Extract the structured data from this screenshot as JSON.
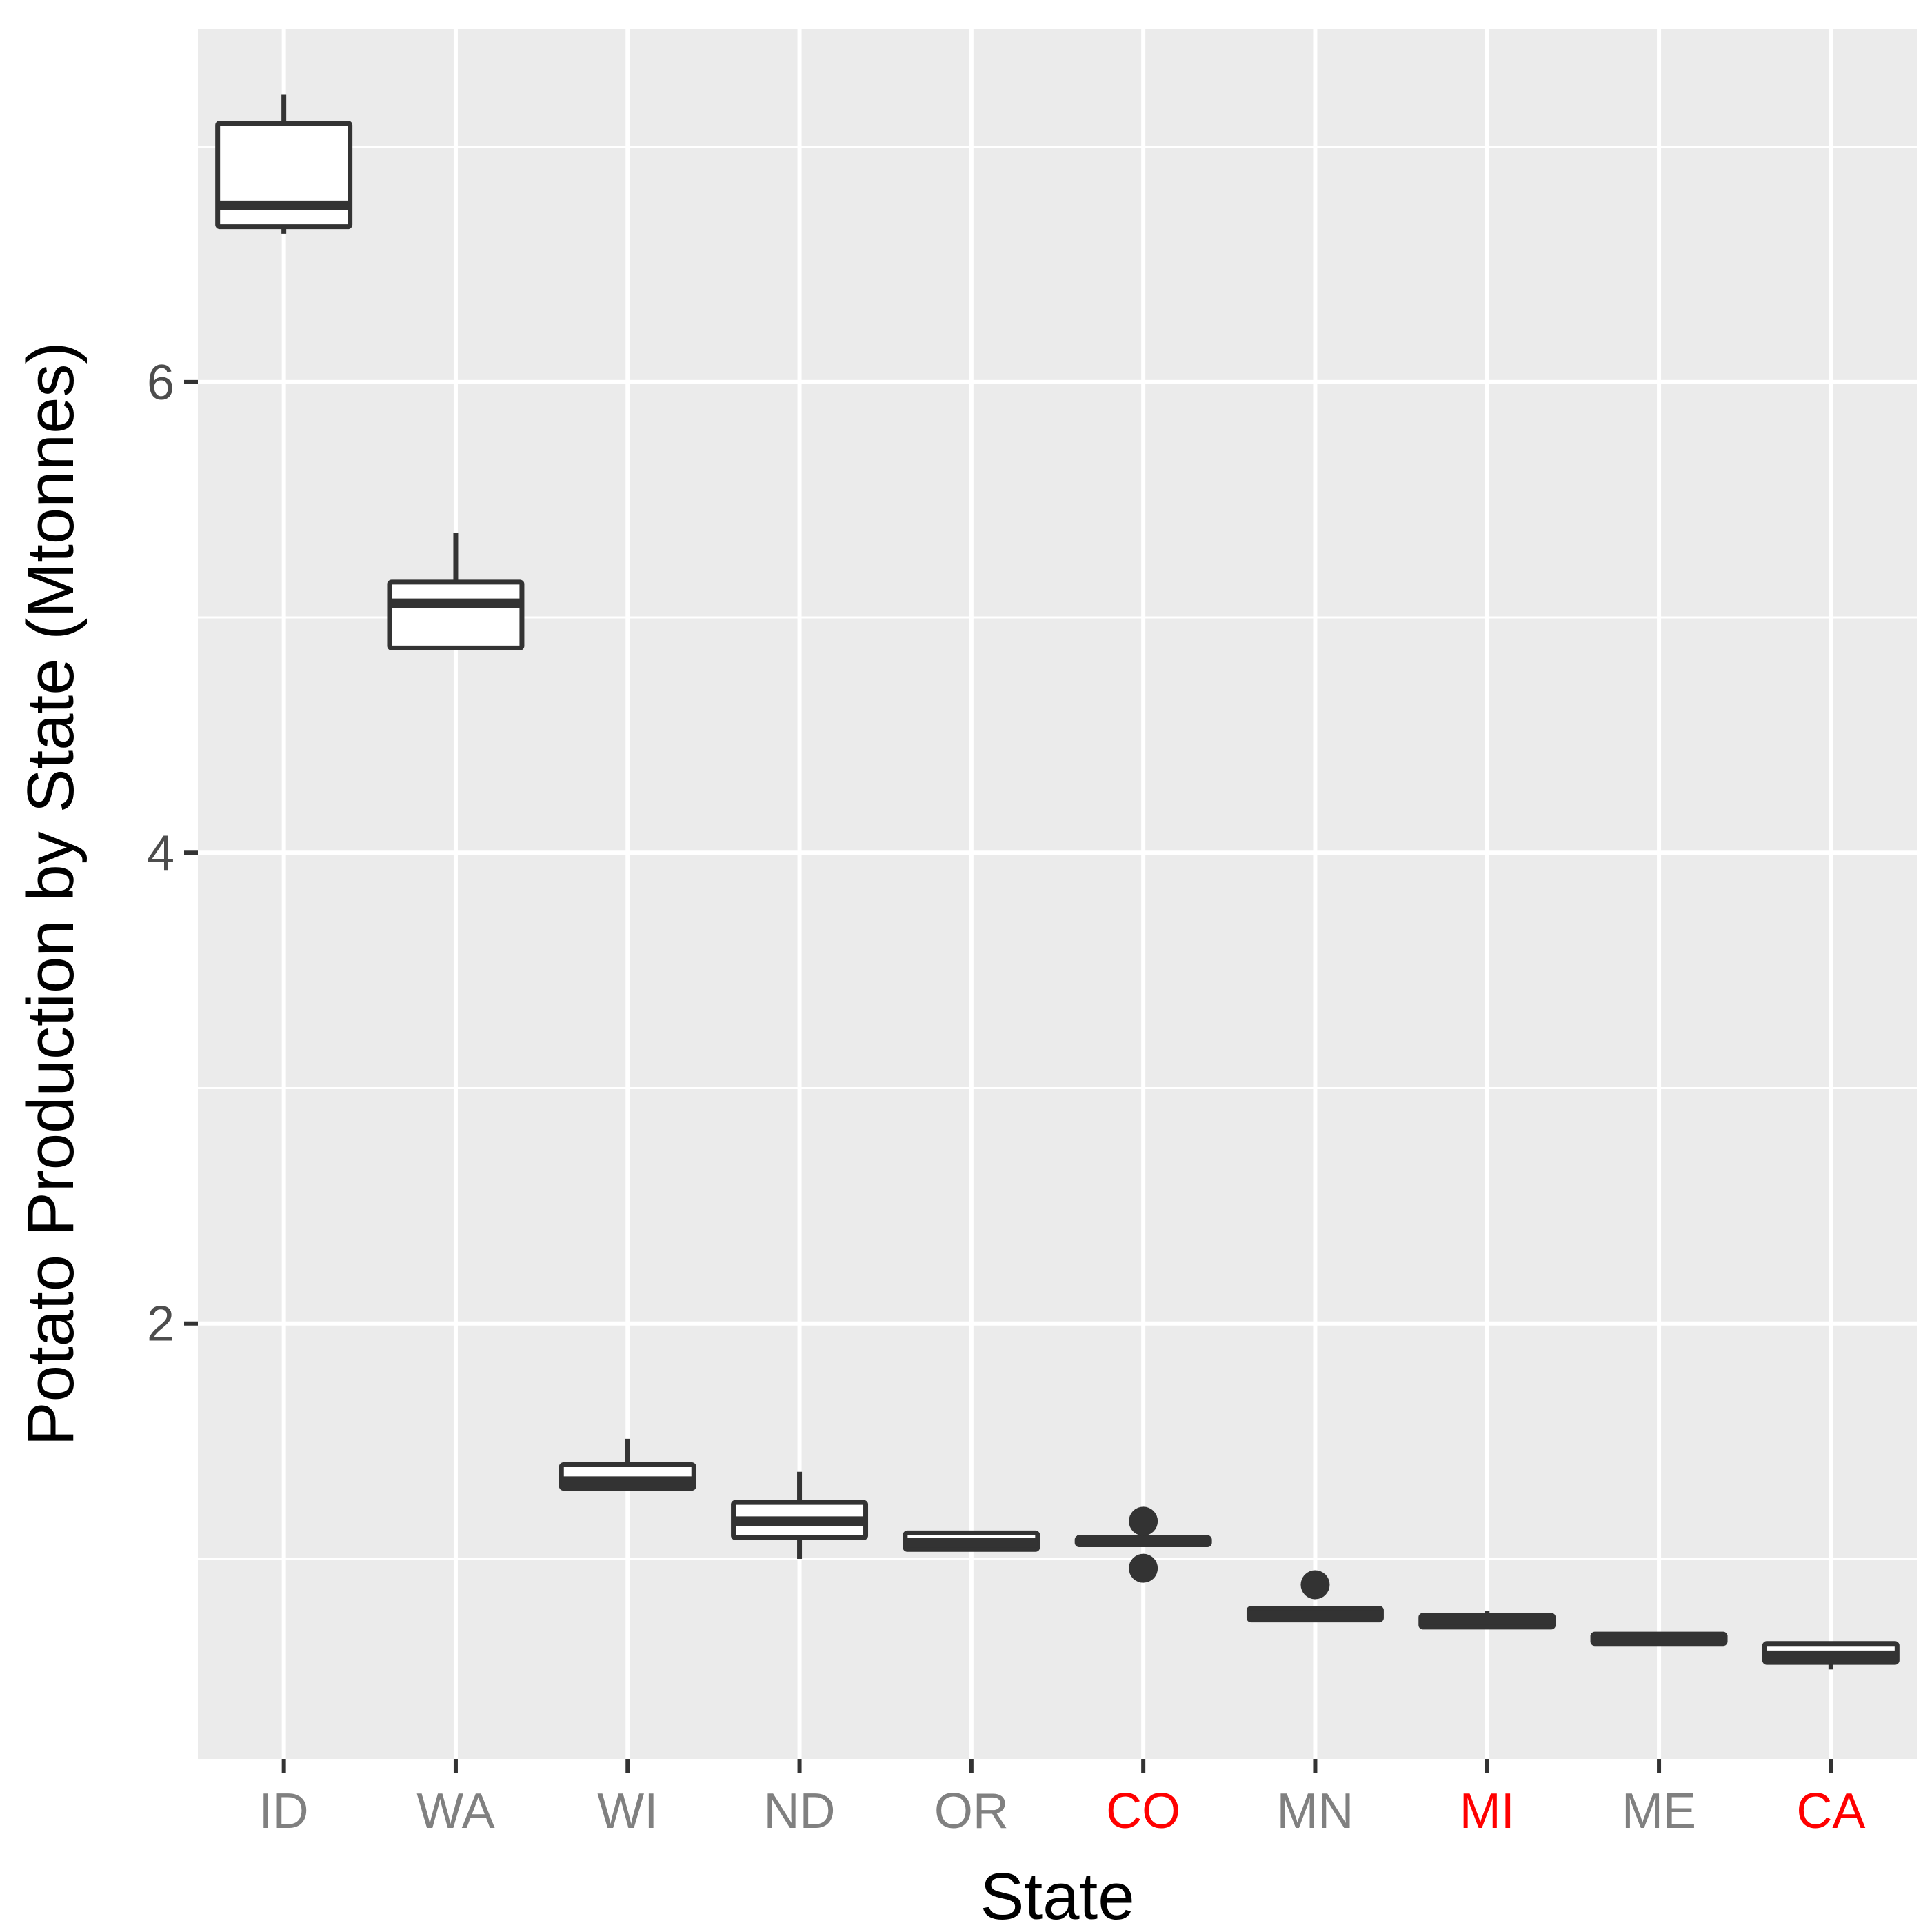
{
  "chart_data": {
    "type": "boxplot",
    "title": "",
    "xlabel": "State",
    "ylabel": "Potato Production by State (Mtonnes)",
    "ylim": [
      0.15,
      7.5
    ],
    "y_ticks": [
      2,
      4,
      6
    ],
    "y_minor_gridlines": [
      1,
      3,
      5,
      7
    ],
    "grid": true,
    "legend": "none",
    "categories": [
      "ID",
      "WA",
      "WI",
      "ND",
      "OR",
      "CO",
      "MN",
      "MI",
      "ME",
      "CA"
    ],
    "category_label_colors": [
      "#808080",
      "#808080",
      "#808080",
      "#808080",
      "#808080",
      "#FF0000",
      "#808080",
      "#FF0000",
      "#808080",
      "#FF0000"
    ],
    "boxes": [
      {
        "category": "ID",
        "min": 6.63,
        "q1": 6.66,
        "median": 6.75,
        "q3": 7.1,
        "max": 7.22,
        "outliers": []
      },
      {
        "category": "WA",
        "min": 4.87,
        "q1": 4.87,
        "median": 5.06,
        "q3": 5.15,
        "max": 5.36,
        "outliers": []
      },
      {
        "category": "WI",
        "min": 1.3,
        "q1": 1.3,
        "median": 1.33,
        "q3": 1.4,
        "max": 1.51,
        "outliers": []
      },
      {
        "category": "ND",
        "min": 1.0,
        "q1": 1.09,
        "median": 1.16,
        "q3": 1.24,
        "max": 1.37,
        "outliers": []
      },
      {
        "category": "OR",
        "min": 1.04,
        "q1": 1.04,
        "median": 1.07,
        "q3": 1.11,
        "max": 1.11,
        "outliers": []
      },
      {
        "category": "CO",
        "min": 1.06,
        "q1": 1.06,
        "median": 1.08,
        "q3": 1.09,
        "max": 1.09,
        "outliers": [
          0.96,
          1.16
        ]
      },
      {
        "category": "MN",
        "min": 0.74,
        "q1": 0.74,
        "median": 0.76,
        "q3": 0.79,
        "max": 0.79,
        "outliers": [
          0.89
        ]
      },
      {
        "category": "MI",
        "min": 0.71,
        "q1": 0.71,
        "median": 0.74,
        "q3": 0.76,
        "max": 0.78,
        "outliers": []
      },
      {
        "category": "ME",
        "min": 0.64,
        "q1": 0.64,
        "median": 0.66,
        "q3": 0.68,
        "max": 0.68,
        "outliers": []
      },
      {
        "category": "CA",
        "min": 0.53,
        "q1": 0.56,
        "median": 0.59,
        "q3": 0.64,
        "max": 0.64,
        "outliers": []
      }
    ]
  },
  "colors": {
    "panel_background": "#EBEBEB",
    "grid": "#FFFFFF",
    "box_stroke": "#333333",
    "box_fill": "#FFFFFF",
    "tick_label_default": "#4D4D4D",
    "axis_title": "#000000"
  }
}
